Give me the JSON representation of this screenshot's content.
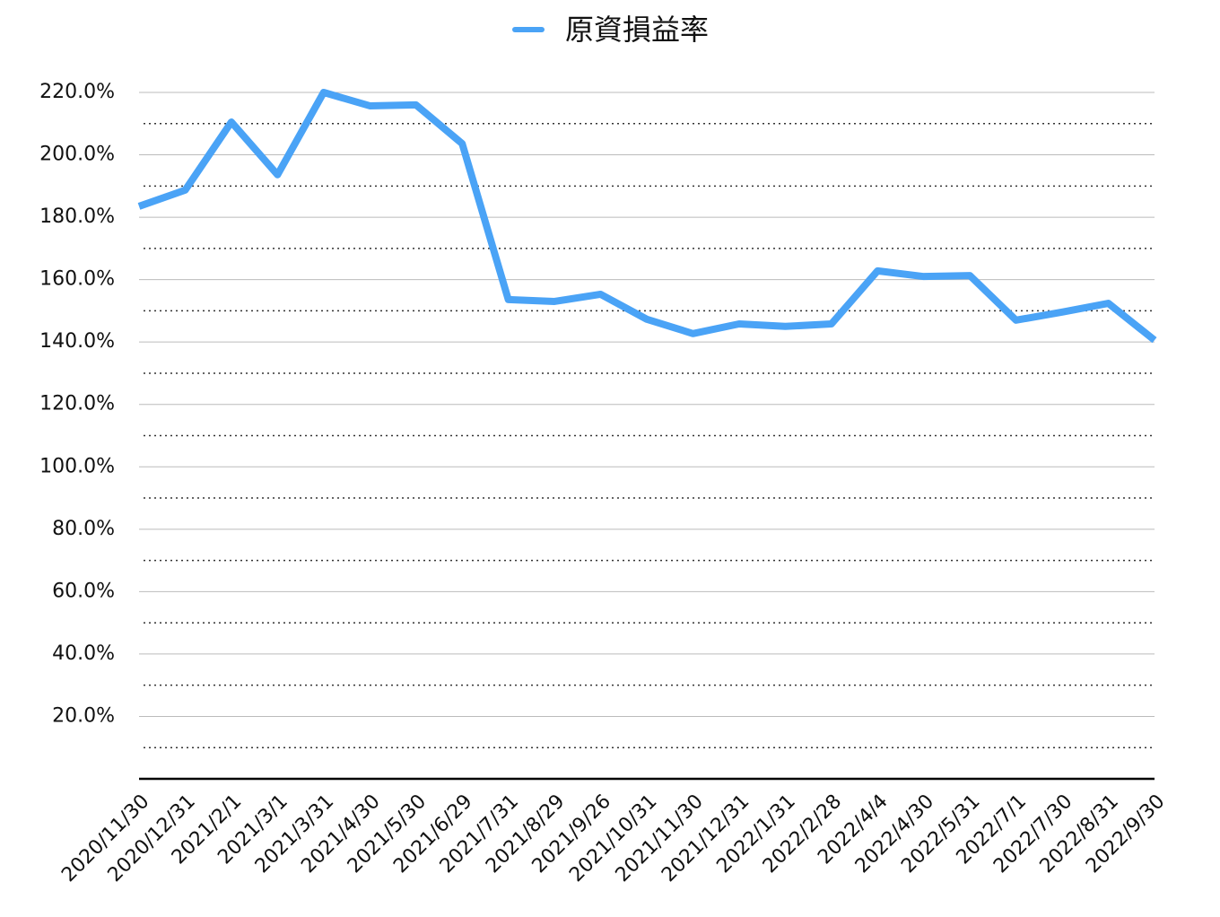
{
  "chart_data": {
    "type": "line",
    "categories": [
      "2020/11/30",
      "2020/12/31",
      "2021/2/1",
      "2021/3/1",
      "2021/3/31",
      "2021/4/30",
      "2021/5/30",
      "2021/6/29",
      "2021/7/31",
      "2021/8/29",
      "2021/9/26",
      "2021/10/31",
      "2021/11/30",
      "2021/12/31",
      "2022/1/31",
      "2022/2/28",
      "2022/4/4",
      "2022/4/30",
      "2022/5/31",
      "2022/7/1",
      "2022/7/30",
      "2022/8/31",
      "2022/9/30"
    ],
    "series": [
      {
        "name": "原資損益率",
        "color": "#4aa3f6",
        "values": [
          183.5,
          188.7,
          210.5,
          193.6,
          220,
          215.7,
          216,
          203.6,
          153.6,
          153,
          155.3,
          147.3,
          142.7,
          145.8,
          145,
          145.8,
          162.8,
          161,
          161.3,
          147,
          149.6,
          152.4,
          140.6
        ]
      }
    ],
    "ylim": [
      0,
      220
    ],
    "yticks": [
      {
        "value": 20,
        "label": "20.0%"
      },
      {
        "value": 40,
        "label": "40.0%"
      },
      {
        "value": 60,
        "label": "60.0%"
      },
      {
        "value": 80,
        "label": "80.0%"
      },
      {
        "value": 100,
        "label": "100.0%"
      },
      {
        "value": 120,
        "label": "120.0%"
      },
      {
        "value": 140,
        "label": "140.0%"
      },
      {
        "value": 160,
        "label": "160.0%"
      },
      {
        "value": 180,
        "label": "180.0%"
      },
      {
        "value": 200,
        "label": "200.0%"
      },
      {
        "value": 220,
        "label": "220.0%"
      }
    ],
    "minor_yticks": [
      10,
      30,
      50,
      70,
      90,
      110,
      130,
      150,
      170,
      190,
      210
    ],
    "grid": true,
    "legend": "top"
  }
}
